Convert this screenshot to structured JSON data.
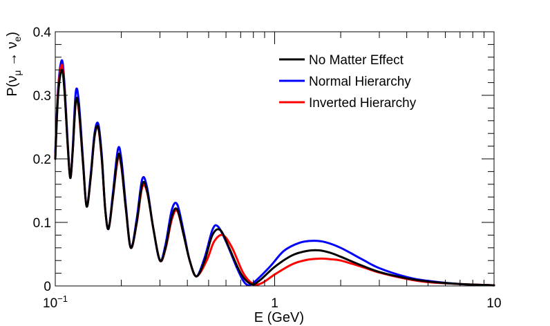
{
  "chart_data": {
    "type": "line",
    "xlabel": "E (GeV)",
    "ylabel": {
      "prefix": "P(ν",
      "sub1": "μ",
      "arrow": " → ν",
      "sub2": "e",
      "suffix": ")"
    },
    "xscale": "log",
    "xlim": [
      0.1,
      10
    ],
    "ylim": [
      0,
      0.4
    ],
    "x_ticks": [
      {
        "value": 0.1,
        "base": "10",
        "exp": "−1"
      },
      {
        "value": 1,
        "label": "1"
      },
      {
        "value": 10,
        "label": "10"
      }
    ],
    "y_ticks": [
      {
        "value": 0,
        "label": "0"
      },
      {
        "value": 0.1,
        "label": "0.1"
      },
      {
        "value": 0.2,
        "label": "0.2"
      },
      {
        "value": 0.3,
        "label": "0.3"
      },
      {
        "value": 0.4,
        "label": "0.4"
      }
    ],
    "grid": false,
    "legend_position": "top-right",
    "series": [
      {
        "name": "No Matter Effect",
        "color": "#000000",
        "points": [
          [
            0.1,
            0.2
          ],
          [
            0.103,
            0.3
          ],
          [
            0.107,
            0.34
          ],
          [
            0.11,
            0.31
          ],
          [
            0.114,
            0.22
          ],
          [
            0.117,
            0.17
          ],
          [
            0.12,
            0.21
          ],
          [
            0.124,
            0.29
          ],
          [
            0.128,
            0.28
          ],
          [
            0.134,
            0.19
          ],
          [
            0.139,
            0.125
          ],
          [
            0.145,
            0.17
          ],
          [
            0.151,
            0.235
          ],
          [
            0.157,
            0.25
          ],
          [
            0.163,
            0.2
          ],
          [
            0.169,
            0.12
          ],
          [
            0.175,
            0.09
          ],
          [
            0.183,
            0.14
          ],
          [
            0.193,
            0.205
          ],
          [
            0.2,
            0.19
          ],
          [
            0.21,
            0.12
          ],
          [
            0.221,
            0.06
          ],
          [
            0.235,
            0.1
          ],
          [
            0.249,
            0.16
          ],
          [
            0.262,
            0.15
          ],
          [
            0.28,
            0.09
          ],
          [
            0.3,
            0.04
          ],
          [
            0.318,
            0.06
          ],
          [
            0.34,
            0.11
          ],
          [
            0.36,
            0.12
          ],
          [
            0.385,
            0.08
          ],
          [
            0.41,
            0.04
          ],
          [
            0.44,
            0.015
          ],
          [
            0.48,
            0.04
          ],
          [
            0.52,
            0.08
          ],
          [
            0.565,
            0.088
          ],
          [
            0.62,
            0.06
          ],
          [
            0.7,
            0.02
          ],
          [
            0.78,
            0.003
          ],
          [
            0.85,
            0.008
          ],
          [
            1.0,
            0.03
          ],
          [
            1.2,
            0.048
          ],
          [
            1.4,
            0.055
          ],
          [
            1.6,
            0.056
          ],
          [
            1.8,
            0.052
          ],
          [
            2.0,
            0.046
          ],
          [
            2.5,
            0.032
          ],
          [
            3.0,
            0.022
          ],
          [
            4.0,
            0.012
          ],
          [
            5.0,
            0.007
          ],
          [
            7.0,
            0.003
          ],
          [
            10,
            0.001
          ]
        ]
      },
      {
        "name": "Normal Hierarchy",
        "color": "#0000ff",
        "points": [
          [
            0.1,
            0.21
          ],
          [
            0.103,
            0.31
          ],
          [
            0.107,
            0.355
          ],
          [
            0.11,
            0.32
          ],
          [
            0.114,
            0.225
          ],
          [
            0.117,
            0.17
          ],
          [
            0.12,
            0.215
          ],
          [
            0.124,
            0.305
          ],
          [
            0.128,
            0.29
          ],
          [
            0.134,
            0.195
          ],
          [
            0.139,
            0.125
          ],
          [
            0.145,
            0.175
          ],
          [
            0.151,
            0.24
          ],
          [
            0.157,
            0.255
          ],
          [
            0.163,
            0.205
          ],
          [
            0.169,
            0.12
          ],
          [
            0.175,
            0.09
          ],
          [
            0.183,
            0.145
          ],
          [
            0.193,
            0.215
          ],
          [
            0.2,
            0.2
          ],
          [
            0.21,
            0.125
          ],
          [
            0.221,
            0.06
          ],
          [
            0.235,
            0.105
          ],
          [
            0.249,
            0.168
          ],
          [
            0.262,
            0.155
          ],
          [
            0.28,
            0.09
          ],
          [
            0.3,
            0.04
          ],
          [
            0.318,
            0.065
          ],
          [
            0.34,
            0.12
          ],
          [
            0.36,
            0.128
          ],
          [
            0.385,
            0.085
          ],
          [
            0.41,
            0.04
          ],
          [
            0.44,
            0.015
          ],
          [
            0.48,
            0.045
          ],
          [
            0.52,
            0.088
          ],
          [
            0.55,
            0.094
          ],
          [
            0.6,
            0.07
          ],
          [
            0.68,
            0.025
          ],
          [
            0.74,
            0.003
          ],
          [
            0.8,
            0.005
          ],
          [
            0.95,
            0.03
          ],
          [
            1.1,
            0.055
          ],
          [
            1.3,
            0.068
          ],
          [
            1.5,
            0.071
          ],
          [
            1.7,
            0.069
          ],
          [
            2.0,
            0.06
          ],
          [
            2.5,
            0.042
          ],
          [
            3.0,
            0.028
          ],
          [
            4.0,
            0.014
          ],
          [
            5.0,
            0.008
          ],
          [
            7.0,
            0.003
          ],
          [
            10,
            0.001
          ]
        ]
      },
      {
        "name": "Inverted Hierarchy",
        "color": "#ff0000",
        "points": [
          [
            0.1,
            0.2
          ],
          [
            0.103,
            0.305
          ],
          [
            0.107,
            0.348
          ],
          [
            0.11,
            0.312
          ],
          [
            0.114,
            0.22
          ],
          [
            0.117,
            0.17
          ],
          [
            0.12,
            0.21
          ],
          [
            0.124,
            0.29
          ],
          [
            0.128,
            0.276
          ],
          [
            0.134,
            0.19
          ],
          [
            0.139,
            0.125
          ],
          [
            0.145,
            0.17
          ],
          [
            0.151,
            0.235
          ],
          [
            0.157,
            0.248
          ],
          [
            0.163,
            0.198
          ],
          [
            0.169,
            0.12
          ],
          [
            0.175,
            0.09
          ],
          [
            0.183,
            0.138
          ],
          [
            0.193,
            0.2
          ],
          [
            0.2,
            0.188
          ],
          [
            0.21,
            0.12
          ],
          [
            0.221,
            0.06
          ],
          [
            0.235,
            0.098
          ],
          [
            0.249,
            0.155
          ],
          [
            0.262,
            0.148
          ],
          [
            0.28,
            0.09
          ],
          [
            0.3,
            0.04
          ],
          [
            0.318,
            0.058
          ],
          [
            0.34,
            0.105
          ],
          [
            0.36,
            0.118
          ],
          [
            0.385,
            0.08
          ],
          [
            0.41,
            0.04
          ],
          [
            0.44,
            0.015
          ],
          [
            0.49,
            0.04
          ],
          [
            0.53,
            0.07
          ],
          [
            0.58,
            0.08
          ],
          [
            0.64,
            0.06
          ],
          [
            0.72,
            0.02
          ],
          [
            0.8,
            0.003
          ],
          [
            0.88,
            0.005
          ],
          [
            1.0,
            0.018
          ],
          [
            1.2,
            0.034
          ],
          [
            1.4,
            0.041
          ],
          [
            1.6,
            0.043
          ],
          [
            1.8,
            0.042
          ],
          [
            2.0,
            0.04
          ],
          [
            2.5,
            0.03
          ],
          [
            3.0,
            0.021
          ],
          [
            4.0,
            0.011
          ],
          [
            5.0,
            0.006
          ],
          [
            7.0,
            0.003
          ],
          [
            10,
            0.001
          ]
        ]
      }
    ]
  }
}
